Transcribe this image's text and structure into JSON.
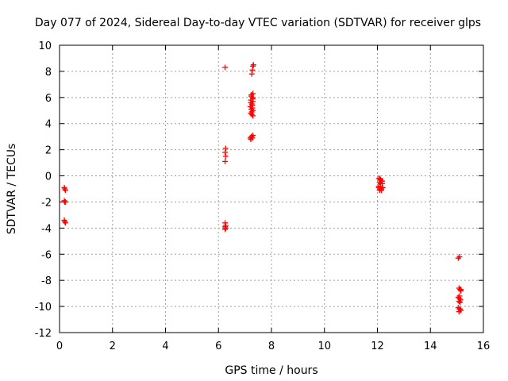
{
  "chart_data": {
    "type": "scatter",
    "title": "Day 077 of 2024, Sidereal Day-to-day VTEC variation (SDTVAR) for receiver glps",
    "xlabel": "GPS time / hours",
    "ylabel": "SDTVAR / TECUs",
    "xlim": [
      0,
      16
    ],
    "ylim": [
      -12,
      10
    ],
    "xticks": [
      0,
      2,
      4,
      6,
      8,
      10,
      12,
      14,
      16
    ],
    "yticks": [
      -12,
      -10,
      -8,
      -6,
      -4,
      -2,
      0,
      2,
      4,
      6,
      8,
      10
    ],
    "grid": true,
    "marker": "plus",
    "color": "#ff0000",
    "series": [
      {
        "x": [
          0.18,
          0.2,
          0.22,
          0.18,
          0.2,
          0.22,
          0.18,
          0.2,
          0.22,
          6.25,
          6.27,
          6.25,
          6.27,
          6.25,
          6.25,
          6.27,
          6.25,
          6.27,
          6.25,
          7.2,
          7.25,
          7.3,
          7.22,
          7.28,
          7.24,
          7.3,
          7.22,
          7.26,
          7.3,
          7.24,
          7.28,
          7.2,
          7.26,
          7.3,
          7.22,
          7.28,
          7.24,
          7.3,
          7.26,
          7.28,
          7.22,
          7.3,
          7.24,
          7.26,
          7.28,
          7.3,
          7.32,
          12.05,
          12.1,
          12.15,
          12.08,
          12.12,
          12.18,
          12.05,
          12.1,
          12.15,
          12.2,
          12.08,
          12.12,
          12.05,
          12.15,
          12.1,
          12.18,
          15.05,
          15.1,
          15.08,
          15.12,
          15.15,
          15.05,
          15.1,
          15.14,
          15.08,
          15.12,
          15.05,
          15.1,
          15.15,
          15.08,
          15.12,
          15.1,
          15.15
        ],
        "y": [
          -0.9,
          -1.0,
          -1.1,
          -1.9,
          -2.0,
          -2.0,
          -3.4,
          -3.5,
          -3.6,
          8.3,
          2.1,
          1.8,
          1.5,
          1.1,
          -3.6,
          -3.8,
          -3.9,
          -4.0,
          -4.1,
          2.9,
          3.0,
          3.1,
          2.8,
          2.9,
          3.0,
          4.6,
          4.8,
          4.9,
          5.0,
          5.1,
          5.2,
          5.3,
          5.5,
          5.7,
          5.8,
          6.0,
          6.1,
          6.3,
          4.7,
          5.4,
          5.6,
          5.9,
          6.2,
          7.8,
          8.1,
          8.4,
          8.5,
          -0.2,
          -0.3,
          -0.4,
          -0.5,
          -0.6,
          -0.4,
          -0.9,
          -1.0,
          -1.1,
          -0.9,
          -1.1,
          -0.3,
          -0.8,
          -1.0,
          -0.2,
          -0.6,
          -6.3,
          -6.2,
          -8.6,
          -8.7,
          -8.8,
          -9.3,
          -9.4,
          -9.5,
          -9.6,
          -9.7,
          -10.1,
          -10.2,
          -10.3,
          -10.4,
          -10.2,
          -9.2,
          -8.7
        ]
      }
    ]
  }
}
